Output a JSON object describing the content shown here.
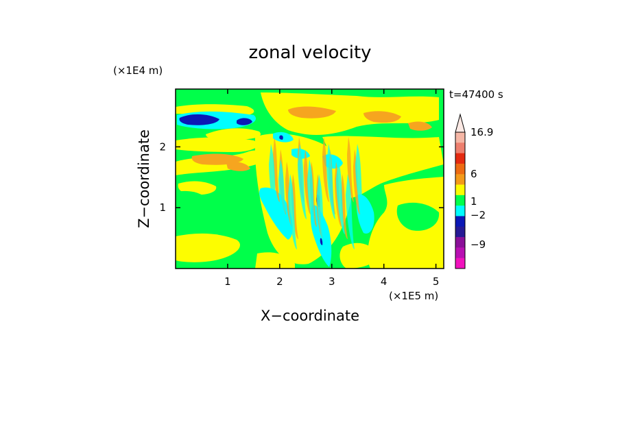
{
  "chart_data": {
    "type": "heatmap",
    "title": "zonal velocity",
    "time_label": "t=47400 s",
    "xlabel": "X−coordinate",
    "ylabel": "Z−coordinate",
    "x_scale_label": "(×1E5 m)",
    "y_scale_label": "(×1E4 m)",
    "xlim": [
      0,
      5.15
    ],
    "ylim": [
      0,
      2.95
    ],
    "x_ticks": [
      1,
      2,
      3,
      4,
      5
    ],
    "y_ticks": [
      1,
      2
    ],
    "x_tick_labels": [
      "1",
      "2",
      "3",
      "4",
      "5"
    ],
    "y_tick_labels": [
      "1",
      "2"
    ],
    "colorbar": {
      "tick_labels": [
        {
          "text": "16.9",
          "value": 16.9
        },
        {
          "text": "6",
          "value": 6
        },
        {
          "text": "1",
          "value": 1
        },
        {
          "text": "−2",
          "value": -2
        },
        {
          "text": "−9",
          "value": -9
        }
      ],
      "extend_max": true,
      "levels": [
        {
          "color": "#f5b6a5"
        },
        {
          "color": "#ee7f6e"
        },
        {
          "color": "#e42a10"
        },
        {
          "color": "#ed6a12"
        },
        {
          "color": "#f39a1a"
        },
        {
          "color": "#fdfd00"
        },
        {
          "color": "#00ff4a"
        },
        {
          "color": "#00fefe"
        },
        {
          "color": "#0b18b6"
        },
        {
          "color": "#261a95"
        },
        {
          "color": "#8a1098"
        },
        {
          "color": "#b810b2"
        },
        {
          "color": "#f112bd"
        }
      ]
    },
    "field_colors": {
      "green": "#00ff4a",
      "yellow": "#fdfd00",
      "orange": "#f6a51f",
      "cyan": "#00fefe",
      "blue": "#0b18b6"
    }
  }
}
